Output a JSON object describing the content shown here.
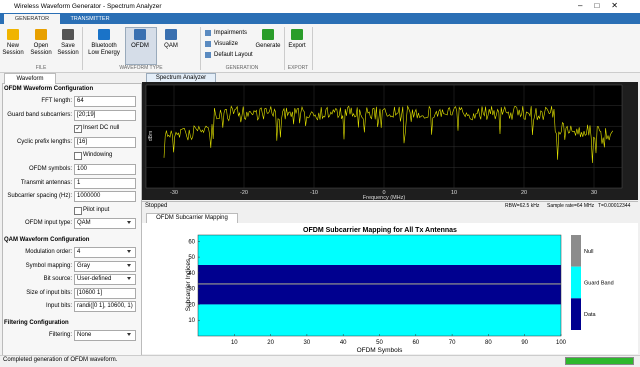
{
  "window": {
    "title": "Wireless Waveform Generator - Spectrum Analyzer"
  },
  "tabs": [
    "GENERATOR",
    "TRANSMITTER"
  ],
  "toolstrip": {
    "buttons": [
      {
        "label": [
          "New",
          "Session"
        ]
      },
      {
        "label": [
          "Open",
          "Session"
        ]
      },
      {
        "label": [
          "Save",
          "Session"
        ]
      },
      {
        "label": [
          "Bluetooth",
          "Low Energy"
        ]
      },
      {
        "label": [
          "OFDM"
        ]
      },
      {
        "label": [
          "QAM"
        ]
      },
      {
        "label": [
          "Generate"
        ]
      },
      {
        "label": [
          "Export"
        ]
      }
    ],
    "small_buttons": [
      "Impairments",
      "Visualize",
      "Default Layout"
    ],
    "sections": [
      "FILE",
      "WAVEFORM TYPE",
      "GENERATION",
      "EXPORT"
    ]
  },
  "left_panel": {
    "tab": "Waveform",
    "sections": [
      {
        "title": "OFDM Waveform Configuration",
        "fields": [
          {
            "label": "FFT length:",
            "value": "64"
          },
          {
            "label": "Guard band subcarriers:",
            "value": "[20;19]"
          },
          {
            "checkbox": "Insert DC null",
            "checked": true
          },
          {
            "label": "Cyclic prefix lengths:",
            "value": "[16]"
          },
          {
            "checkbox": "Windowing",
            "checked": false
          },
          {
            "label": "OFDM symbols:",
            "value": "100"
          },
          {
            "label": "Transmit antennas:",
            "value": "1"
          },
          {
            "label": "Subcarrier spacing (Hz):",
            "value": "1000000"
          },
          {
            "checkbox": "Pilot input",
            "checked": false
          },
          {
            "label": "OFDM input type:",
            "value": "QAM",
            "dropdown": true
          }
        ]
      },
      {
        "title": "QAM Waveform Configuration",
        "fields": [
          {
            "label": "Modulation order:",
            "value": "4",
            "dropdown": true
          },
          {
            "label": "Symbol mapping:",
            "value": "Gray",
            "dropdown": true
          },
          {
            "label": "Bit source:",
            "value": "User-defined",
            "dropdown": true
          },
          {
            "label": "Size of input bits:",
            "value": "[10600     1]"
          },
          {
            "label": "Input bits:",
            "value": "randi([0 1], 10600, 1)"
          }
        ]
      },
      {
        "title": "Filtering Configuration",
        "fields": [
          {
            "label": "Filtering:",
            "value": "None",
            "dropdown": true
          }
        ]
      }
    ]
  },
  "spectrum": {
    "tab": "Spectrum Analyzer",
    "xlabel": "Frequency (MHz)",
    "ylabel": "dBm",
    "xlim": [
      -34,
      34
    ],
    "xticks": [
      -30,
      -20,
      -10,
      0,
      10,
      20,
      30
    ],
    "status": "Stopped",
    "readouts": [
      "RBW=62.5 kHz",
      "Sample rate=64 MHz",
      "T=0.00012344"
    ]
  },
  "chart_data": {
    "type": "band",
    "tab": "OFDM Subcarrier Mapping",
    "title": "OFDM Subcarrier Mapping for All Tx Antennas",
    "xlabel": "OFDM Symbols",
    "ylabel": "Subcarrier Indices",
    "xlim": [
      0,
      100
    ],
    "ylim": [
      0,
      64
    ],
    "xticks": [
      10,
      20,
      30,
      40,
      50,
      60,
      70,
      80,
      90,
      100
    ],
    "yticks": [
      10,
      20,
      30,
      40,
      50,
      60
    ],
    "series": [
      {
        "name": "Null",
        "color": "#8c8c8c",
        "ranges": [
          [
            32.6,
            33.4
          ]
        ]
      },
      {
        "name": "Guard Band",
        "color": "#00ffff",
        "ranges": [
          [
            0,
            20
          ],
          [
            45,
            64
          ]
        ]
      },
      {
        "name": "Data",
        "color": "#00008f",
        "ranges": [
          [
            20,
            45
          ]
        ]
      }
    ]
  },
  "status_bar": "Completed generation of OFDM waveform."
}
